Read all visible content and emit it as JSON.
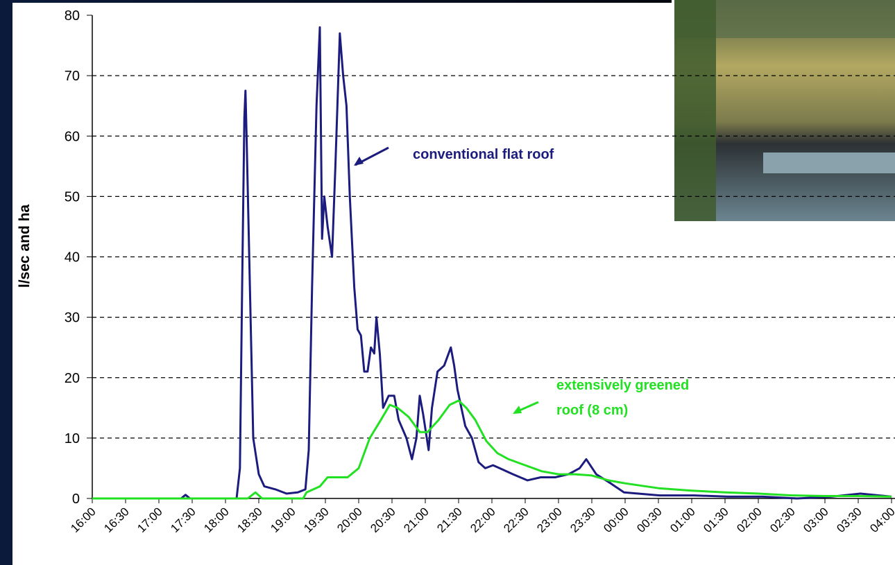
{
  "chart_data": {
    "type": "line",
    "ylabel": "l/sec and ha",
    "xlim": [
      "16:00",
      "04:00"
    ],
    "ylim": [
      0,
      80
    ],
    "yticks": [
      0,
      10,
      20,
      30,
      40,
      50,
      60,
      70,
      80
    ],
    "xticks": [
      "16:00",
      "16:30",
      "17:00",
      "17:30",
      "18:00",
      "18:30",
      "19:00",
      "19:30",
      "20:00",
      "20:30",
      "21:00",
      "21:30",
      "22:00",
      "22:30",
      "23:00",
      "23:30",
      "00:00",
      "00:30",
      "01:00",
      "01:30",
      "02:00",
      "02:30",
      "03:00",
      "03:30",
      "04:00"
    ],
    "grid": true,
    "series": [
      {
        "name": "conventional flat roof",
        "color": "#1c1c7e",
        "x": [
          "16:00",
          "17:20",
          "17:24",
          "17:28",
          "18:10",
          "18:13",
          "18:15",
          "18:17",
          "18:18",
          "18:19",
          "18:22",
          "18:25",
          "18:30",
          "18:35",
          "18:45",
          "18:55",
          "19:05",
          "19:12",
          "19:15",
          "19:18",
          "19:22",
          "19:25",
          "19:27",
          "19:29",
          "19:32",
          "19:36",
          "19:39",
          "19:43",
          "19:46",
          "19:49",
          "19:52",
          "19:56",
          "19:59",
          "20:02",
          "20:05",
          "20:08",
          "20:11",
          "20:14",
          "20:16",
          "20:19",
          "20:22",
          "20:27",
          "20:32",
          "20:36",
          "20:43",
          "20:48",
          "20:52",
          "20:55",
          "20:58",
          "21:03",
          "21:06",
          "21:11",
          "21:17",
          "21:23",
          "21:26",
          "21:29",
          "21:36",
          "21:42",
          "21:48",
          "21:54",
          "22:01",
          "22:07",
          "22:19",
          "22:32",
          "22:44",
          "22:57",
          "23:09",
          "23:19",
          "23:25",
          "23:34",
          "23:47",
          "23:59",
          "00:31",
          "01:02",
          "01:33",
          "02:04",
          "02:35",
          "03:06",
          "03:32",
          "04:00"
        ],
        "values": [
          0,
          0,
          0.6,
          0,
          0,
          5,
          35,
          63,
          67.5,
          60,
          35,
          10,
          4,
          2,
          1.5,
          0.8,
          1,
          1.5,
          8,
          35,
          65,
          78,
          43,
          50,
          45,
          40,
          55,
          77,
          70,
          65,
          50,
          35,
          28,
          27,
          21,
          21,
          25,
          24,
          30,
          24,
          15,
          17,
          17,
          13,
          10,
          6.5,
          10,
          17,
          14,
          8,
          15,
          21,
          22,
          25,
          22,
          18,
          12,
          10,
          6,
          5,
          5.5,
          5,
          4,
          3,
          3.5,
          3.5,
          4,
          5,
          6.5,
          4,
          2.5,
          1,
          0.5,
          0.5,
          0.3,
          0.3,
          0,
          0.3,
          0.8,
          0.3
        ]
      },
      {
        "name": "extensively greened roof (8 cm)",
        "color": "#22e022",
        "x": [
          "16:00",
          "18:20",
          "18:27",
          "18:33",
          "19:10",
          "19:13",
          "19:25",
          "19:32",
          "19:50",
          "20:00",
          "20:10",
          "20:20",
          "20:28",
          "20:35",
          "20:45",
          "20:55",
          "21:02",
          "21:12",
          "21:22",
          "21:30",
          "21:37",
          "21:45",
          "21:55",
          "22:05",
          "22:15",
          "22:30",
          "22:45",
          "23:00",
          "23:15",
          "23:30",
          "23:45",
          "00:00",
          "00:30",
          "01:00",
          "01:30",
          "02:00",
          "02:30",
          "03:00",
          "03:30",
          "04:00"
        ],
        "values": [
          0,
          0,
          1,
          0,
          0,
          1,
          2,
          3.5,
          3.5,
          5,
          10,
          13,
          15.5,
          15,
          13.5,
          11,
          11,
          13,
          15.5,
          16.2,
          15,
          13,
          9.5,
          7.5,
          6.5,
          5.5,
          4.5,
          4,
          4,
          3.8,
          3,
          2.5,
          1.7,
          1.3,
          1,
          0.8,
          0.5,
          0.4,
          0.4,
          0.3
        ]
      }
    ],
    "annotations": [
      {
        "lines": [
          "conventional flat roof"
        ]
      },
      {
        "lines": [
          "extensively greened",
          "roof (8 cm)"
        ]
      }
    ]
  }
}
